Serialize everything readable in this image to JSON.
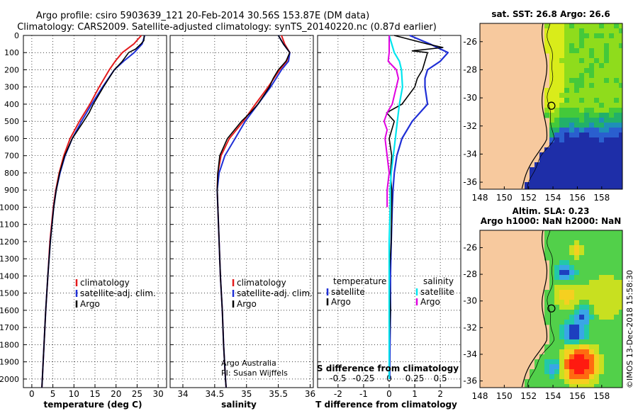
{
  "header": {
    "line1": "Argo profile: csiro 5903639_121 20-Feb-2014 30.56S 153.87E (DM data)",
    "line2": "Climatology: CARS2009. Satellite-adjusted climatology: synTS_20140220.nc (0.87d earlier)"
  },
  "colors": {
    "climatology": "#e31a1c",
    "satellite": "#1f2fd6",
    "argo": "#000000",
    "salinity_satellite": "#00e5ee",
    "salinity_argo": "#e000e0",
    "land": "#f7c99e"
  },
  "depth_ticks": [
    "0",
    "100",
    "200",
    "300",
    "400",
    "500",
    "600",
    "700",
    "800",
    "900",
    "1000",
    "1100",
    "1200",
    "1300",
    "1400",
    "1500",
    "1600",
    "1700",
    "1800",
    "1900",
    "2000"
  ],
  "credits": {
    "line1": "Argo Australia",
    "line2": "PI: Susan Wijffels"
  },
  "stamp": "©IMOS 13-Dec-2018 15:58:30",
  "chart_data": [
    {
      "type": "line",
      "name": "temperature",
      "xlabel": "temperature (deg C)",
      "xticks": [
        "0",
        "5",
        "10",
        "15",
        "20",
        "25",
        "30"
      ],
      "xlim": [
        -2,
        32
      ],
      "ylim": [
        2050,
        0
      ],
      "legend": [
        "climatology",
        "satellite-adj. clim.",
        "Argo"
      ],
      "series": [
        {
          "name": "climatology",
          "depth": [
            0,
            50,
            100,
            150,
            200,
            300,
            400,
            500,
            600,
            700,
            800,
            900,
            1000,
            1200,
            1400,
            1600,
            1800,
            2000,
            2050
          ],
          "values": [
            26.0,
            24.2,
            21.5,
            19.8,
            18.4,
            16.0,
            13.8,
            11.3,
            9.1,
            7.6,
            6.5,
            5.7,
            5.1,
            4.3,
            3.8,
            3.3,
            2.9,
            2.5,
            2.4
          ]
        },
        {
          "name": "satellite-adj. clim.",
          "depth": [
            0,
            50,
            100,
            150,
            200,
            300,
            400,
            500,
            600,
            700,
            800,
            900,
            1000,
            1200,
            1400,
            1600,
            1800,
            2000,
            2050
          ],
          "values": [
            26.8,
            26.2,
            24.3,
            21.8,
            19.6,
            16.8,
            14.2,
            11.8,
            9.6,
            7.9,
            6.7,
            5.8,
            5.2,
            4.4,
            3.8,
            3.3,
            2.9,
            2.5,
            2.4
          ]
        },
        {
          "name": "Argo",
          "depth": [
            0,
            30,
            50,
            80,
            100,
            150,
            200,
            300,
            400,
            450,
            500,
            600,
            700,
            800,
            900,
            1000,
            1200,
            1400,
            1600,
            1800,
            2000,
            2050
          ],
          "values": [
            26.7,
            26.6,
            25.9,
            24.6,
            23.0,
            21.5,
            19.6,
            17.0,
            14.6,
            13.6,
            12.3,
            9.6,
            7.8,
            6.6,
            5.8,
            5.2,
            4.4,
            3.8,
            3.3,
            2.9,
            2.5,
            2.4
          ]
        }
      ]
    },
    {
      "type": "line",
      "name": "salinity",
      "xlabel": "salinity",
      "xticks": [
        "34",
        "34.5",
        "35",
        "35.5",
        "36"
      ],
      "xlim": [
        33.8,
        36.05
      ],
      "ylim": [
        2050,
        0
      ],
      "legend": [
        "climatology",
        "satellite-adj. clim.",
        "Argo"
      ],
      "series": [
        {
          "name": "climatology",
          "depth": [
            0,
            50,
            100,
            150,
            200,
            300,
            400,
            500,
            600,
            700,
            800,
            900,
            1000,
            1200,
            1400,
            1600,
            1800,
            2000,
            2050
          ],
          "values": [
            35.55,
            35.6,
            35.68,
            35.63,
            35.52,
            35.34,
            35.14,
            34.95,
            34.73,
            34.6,
            34.55,
            34.54,
            34.55,
            34.57,
            34.59,
            34.62,
            34.64,
            34.67,
            34.68
          ]
        },
        {
          "name": "satellite-adj. clim.",
          "depth": [
            0,
            50,
            100,
            150,
            200,
            300,
            400,
            500,
            600,
            700,
            800,
            900,
            1000,
            1200,
            1400,
            1600,
            1800,
            2000,
            2050
          ],
          "values": [
            35.5,
            35.58,
            35.68,
            35.66,
            35.55,
            35.38,
            35.18,
            34.98,
            34.82,
            34.66,
            34.57,
            34.54,
            34.55,
            34.57,
            34.59,
            34.62,
            34.64,
            34.67,
            34.68
          ]
        },
        {
          "name": "Argo",
          "depth": [
            0,
            50,
            100,
            150,
            200,
            250,
            300,
            400,
            450,
            500,
            600,
            700,
            800,
            900,
            1000,
            1200,
            1400,
            1600,
            1800,
            2000,
            2050
          ],
          "values": [
            35.5,
            35.58,
            35.68,
            35.62,
            35.5,
            35.42,
            35.36,
            35.18,
            35.06,
            34.92,
            34.7,
            34.58,
            34.55,
            34.54,
            34.55,
            34.57,
            34.59,
            34.62,
            34.64,
            34.67,
            34.68
          ]
        }
      ]
    },
    {
      "type": "line",
      "name": "difference",
      "xlabel": "T difference from climatology",
      "xticks": [
        "-2",
        "-1",
        "0",
        "1",
        "2"
      ],
      "xlim": [
        -2.8,
        2.8
      ],
      "secondary_label": "S difference from climatology",
      "secondary_ticks": [
        "-0.5",
        "-0.25",
        "0",
        "0.25",
        "0.5"
      ],
      "ylim": [
        2050,
        0
      ],
      "legend_temperature_title": "temperature",
      "legend_salinity_title": "salinity",
      "legend_temperature": [
        "satellite",
        "Argo"
      ],
      "legend_salinity": [
        "satellite",
        "Argo"
      ],
      "series": [
        {
          "name": "temperature satellite",
          "depth": [
            0,
            50,
            100,
            150,
            200,
            250,
            300,
            400,
            500,
            600,
            700,
            800,
            900,
            1000,
            1200,
            1400,
            1600,
            1800,
            2000
          ],
          "values": [
            0.8,
            1.6,
            2.3,
            2.0,
            1.5,
            1.4,
            1.4,
            1.5,
            0.9,
            0.5,
            0.3,
            0.2,
            0.15,
            0.12,
            0.08,
            0.05,
            0.05,
            0.03,
            0.02
          ]
        },
        {
          "name": "temperature Argo",
          "depth": [
            0,
            50,
            70,
            90,
            100,
            150,
            200,
            250,
            300,
            400,
            450,
            500,
            600,
            700,
            800,
            900,
            1000,
            1200,
            1400,
            1600,
            1800,
            2000
          ],
          "values": [
            0.2,
            1.5,
            2.1,
            0.9,
            1.5,
            1.4,
            1.3,
            1.1,
            1.0,
            0.5,
            -0.1,
            0.2,
            0.0,
            0.1,
            0.05,
            0.1,
            0.1,
            0.08,
            0.0,
            0.05,
            0.0,
            0.0
          ]
        },
        {
          "name": "salinity satellite",
          "depth": [
            0,
            100,
            150,
            200,
            300,
            400,
            500,
            600,
            700,
            800,
            900,
            1000,
            1200,
            1400,
            1600,
            1800,
            2000
          ],
          "values": [
            0.0,
            0.05,
            0.1,
            0.12,
            0.13,
            0.1,
            0.08,
            0.06,
            0.04,
            0.02,
            0.01,
            0.01,
            0.0,
            0.0,
            0.0,
            0.0,
            0.0
          ]
        },
        {
          "name": "salinity Argo",
          "depth": [
            0,
            100,
            150,
            200,
            250,
            300,
            400,
            450,
            500,
            550,
            600,
            700,
            800,
            900,
            1000
          ],
          "values": [
            0.0,
            0.0,
            -0.01,
            0.07,
            0.09,
            0.07,
            0.03,
            -0.02,
            -0.05,
            -0.02,
            -0.04,
            -0.02,
            0.0,
            -0.02,
            -0.02
          ]
        }
      ]
    },
    {
      "type": "heatmap",
      "name": "sst map",
      "title": "sat. SST: 26.8 Argo: 26.6",
      "xticks": [
        "148",
        "150",
        "152",
        "154",
        "156",
        "158"
      ],
      "yticks": [
        "-26",
        "-28",
        "-30",
        "-32",
        "-34",
        "-36"
      ],
      "xlim": [
        148,
        159.7
      ],
      "ylim": [
        -36.5,
        -24.7
      ],
      "argo_position": {
        "lon": 153.87,
        "lat": -30.56
      }
    },
    {
      "type": "heatmap",
      "name": "sla map",
      "title1": "Altim. SLA: 0.23",
      "title2": "Argo h1000: NaN h2000: NaN",
      "xticks": [
        "148",
        "150",
        "152",
        "154",
        "156",
        "158"
      ],
      "yticks": [
        "-26",
        "-28",
        "-30",
        "-32",
        "-34",
        "-36"
      ],
      "xlim": [
        148,
        159.7
      ],
      "ylim": [
        -36.5,
        -24.7
      ],
      "argo_position": {
        "lon": 153.87,
        "lat": -30.56
      }
    }
  ]
}
